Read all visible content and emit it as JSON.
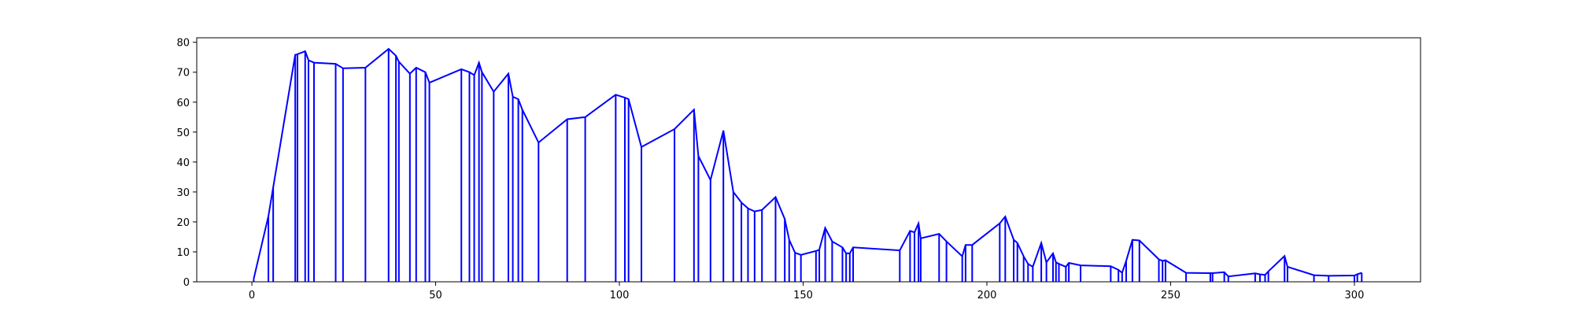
{
  "chart_data": {
    "type": "line",
    "title": "",
    "xlabel": "",
    "ylabel": "",
    "xlim": [
      -15,
      318
    ],
    "ylim": [
      0,
      81.5
    ],
    "x_ticks": [
      0,
      50,
      100,
      150,
      200,
      250,
      300
    ],
    "y_ticks": [
      0,
      10,
      20,
      30,
      40,
      50,
      60,
      70,
      80
    ],
    "x_tick_labels": [
      "0",
      "50",
      "100",
      "150",
      "200",
      "250",
      "300"
    ],
    "y_tick_labels": [
      "0",
      "10",
      "20",
      "30",
      "40",
      "50",
      "60",
      "70",
      "80"
    ],
    "grid": false,
    "legend": "none",
    "line_color": "#0000ff",
    "stems": true,
    "series": [
      {
        "x": [
          0.5,
          4.5,
          5.8,
          11.8,
          12.4,
          14.5,
          15.4,
          16.9,
          22.8,
          24.8,
          30.9,
          37.2,
          39.2,
          40.0,
          43.0,
          44.7,
          47.2,
          48.3,
          57.0,
          59.2,
          60.5,
          61.8,
          62.6,
          65.8,
          69.8,
          71.0,
          72.5,
          73.6,
          78.0,
          85.8,
          90.7,
          99.0,
          101.5,
          102.5,
          106.0,
          115.0,
          120.3,
          121.5,
          124.8,
          128.3,
          131.0,
          133.2,
          135.0,
          136.8,
          138.8,
          142.5,
          145.0,
          146.2,
          147.8,
          149.4,
          153.5,
          154.4,
          156.0,
          157.9,
          160.7,
          161.7,
          162.7,
          163.6,
          176.3,
          179.1,
          180.3,
          181.4,
          182.0,
          187.0,
          189.0,
          193.3,
          194.2,
          196.0,
          203.5,
          205.0,
          207.3,
          208.3,
          210.0,
          211.2,
          212.5,
          214.8,
          216.2,
          218.0,
          218.8,
          219.6,
          221.5,
          222.3,
          225.5,
          233.7,
          235.8,
          236.8,
          237.9,
          239.6,
          241.5,
          246.8,
          247.8,
          248.6,
          254.2,
          260.8,
          261.4,
          264.6,
          265.7,
          273.0,
          274.3,
          275.7,
          276.6,
          281.0,
          281.8,
          289.0,
          293.0,
          300.0,
          300.8,
          302.0
        ],
        "y": [
          1.0,
          22.0,
          31.5,
          75.8,
          76.0,
          77.0,
          74.0,
          73.2,
          72.8,
          71.3,
          71.5,
          77.8,
          75.5,
          73.5,
          69.5,
          71.5,
          70.0,
          66.5,
          71.0,
          70.0,
          69.0,
          73.2,
          70.0,
          63.5,
          69.5,
          61.8,
          61.0,
          57.5,
          46.5,
          54.3,
          55.0,
          62.5,
          61.5,
          61.0,
          45.0,
          51.0,
          57.5,
          42.0,
          34.0,
          50.5,
          30.0,
          26.5,
          24.5,
          23.5,
          24.0,
          28.3,
          21.0,
          14.0,
          9.7,
          9.0,
          10.3,
          10.7,
          18.0,
          13.5,
          11.5,
          9.5,
          9.5,
          11.5,
          10.5,
          17.0,
          16.5,
          19.5,
          14.5,
          16.0,
          13.5,
          8.5,
          12.3,
          12.3,
          19.5,
          21.8,
          14.0,
          13.0,
          8.5,
          6.0,
          5.0,
          13.0,
          6.5,
          9.5,
          6.5,
          6.0,
          5.0,
          6.3,
          5.5,
          5.2,
          4.0,
          3.0,
          7.0,
          14.0,
          13.8,
          7.5,
          7.0,
          7.2,
          3.0,
          2.9,
          2.9,
          3.2,
          1.8,
          2.8,
          2.5,
          2.3,
          3.5,
          8.6,
          5.0,
          2.2,
          2.0,
          2.1,
          2.5,
          3.0
        ]
      }
    ]
  }
}
